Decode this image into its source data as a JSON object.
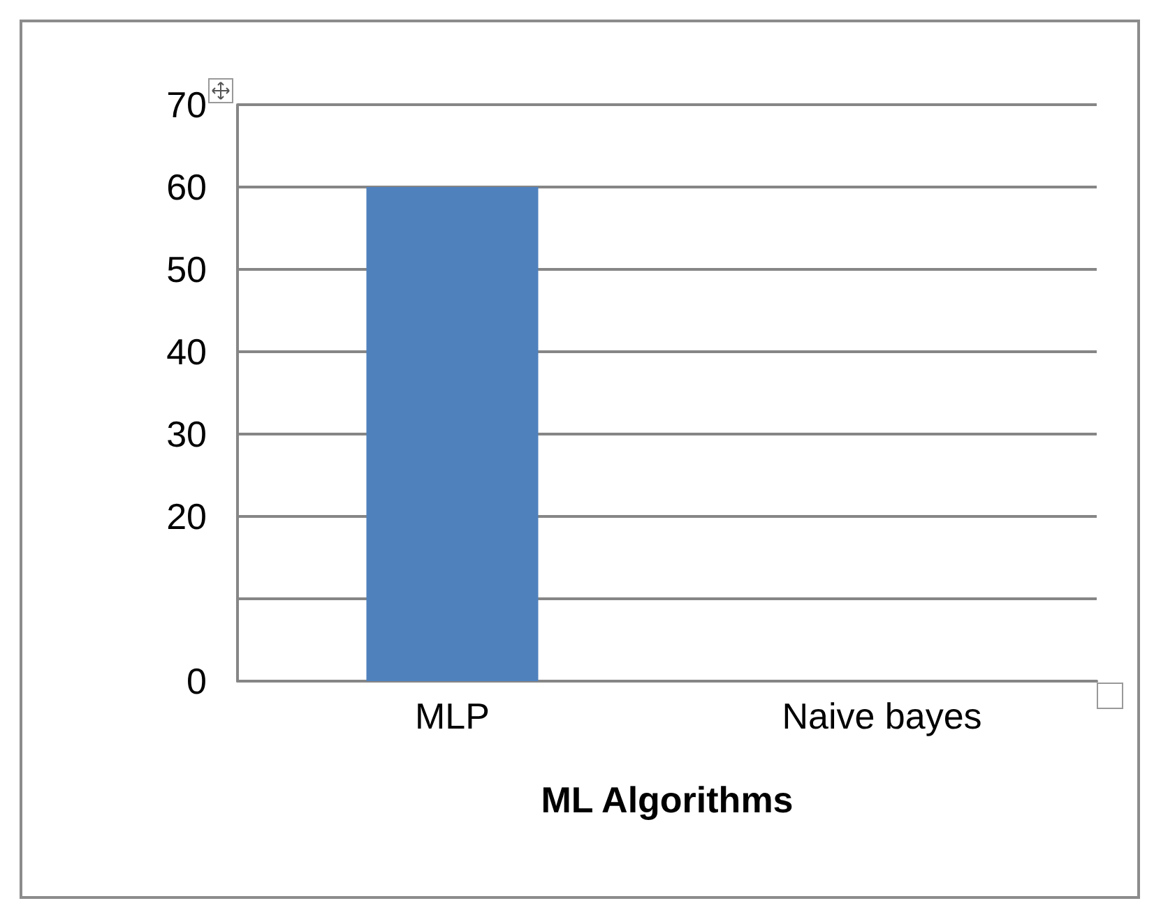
{
  "chart_data": {
    "type": "bar",
    "xlabel": "ML Algorithms",
    "categories": [
      "MLP",
      "Naive bayes"
    ],
    "values": [
      60,
      null
    ],
    "color": "#4f81bd",
    "ylim": [
      0,
      70
    ],
    "yticks": [
      0,
      {
        "value": 10,
        "label": null
      },
      20,
      30,
      40,
      50,
      60,
      70
    ],
    "grid": "y"
  }
}
